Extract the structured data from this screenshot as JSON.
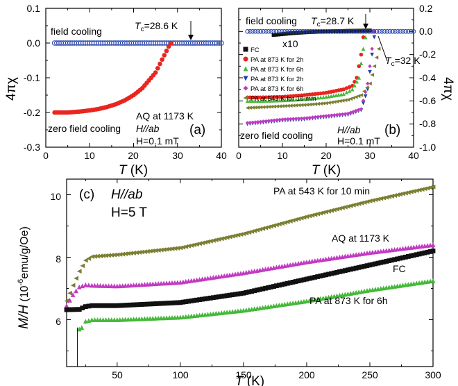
{
  "colors": {
    "axis": "#000000",
    "red": "#e8261f",
    "blue": "#1f3ea8",
    "black": "#111111",
    "green": "#44b83a",
    "magenta": "#c23ac2",
    "olive": "#7a7f32"
  },
  "chart_data": [
    {
      "id": "a",
      "type": "scatter",
      "panel_label": "(a)",
      "xlabel_var": "T",
      "xlabel_unit": " (K)",
      "ylabel": "4πχ",
      "xlim": [
        0,
        40
      ],
      "ylim": [
        -0.3,
        0.1
      ],
      "xticks": [
        "0",
        "10",
        "20",
        "30",
        "40"
      ],
      "yticks": [
        "0.1",
        "0.0",
        "-0.1",
        "-0.2",
        "-0.3"
      ],
      "annotations": {
        "field_cooling": "field cooling",
        "zero_field_cooling": "zero field cooling",
        "tc": "T",
        "tc_sub": "c",
        "tc_val": "=28.6 K",
        "sample": "AQ at 1173 K",
        "field_dir": "H//ab",
        "field_val": "H=0.1 mT"
      },
      "series": [
        {
          "label": "field cooling",
          "color": "#1f3ea8",
          "marker": "open-circle",
          "points": [
            [
              2,
              0.0
            ],
            [
              40,
              0.0
            ]
          ]
        },
        {
          "label": "zero field cooling",
          "color": "#e8261f",
          "marker": "circle",
          "points": [
            [
              2,
              -0.2
            ],
            [
              5,
              -0.2
            ],
            [
              8,
              -0.197
            ],
            [
              10,
              -0.194
            ],
            [
              12,
              -0.19
            ],
            [
              14,
              -0.184
            ],
            [
              16,
              -0.176
            ],
            [
              18,
              -0.165
            ],
            [
              20,
              -0.15
            ],
            [
              22,
              -0.13
            ],
            [
              24,
              -0.1
            ],
            [
              25,
              -0.085
            ],
            [
              26,
              -0.06
            ],
            [
              27,
              -0.035
            ],
            [
              28,
              -0.01
            ],
            [
              28.6,
              0.0
            ]
          ]
        }
      ]
    },
    {
      "id": "b",
      "type": "scatter",
      "panel_label": "(b)",
      "xlabel_var": "T",
      "xlabel_unit": " (K)",
      "ylabel": "4πχ",
      "xlim": [
        0,
        40
      ],
      "ylim": [
        -1.0,
        0.2
      ],
      "xticks": [
        "0",
        "10",
        "20",
        "30",
        "40"
      ],
      "yticks": [
        "0.2",
        "0.0",
        "-0.2",
        "-0.4",
        "-0.6",
        "-0.8",
        "-1.0"
      ],
      "annotations": {
        "field_cooling": "field cooling",
        "zero_field_cooling": "zero field cooling",
        "tc1": "T",
        "tc1_sub": "c",
        "tc1_val": "=28.7 K",
        "tc2": "T",
        "tc2_sub": "c",
        "tc2_val": "=32 K",
        "x10": "x10",
        "field_dir": "H//ab",
        "field_val": "H=0.1 mT"
      },
      "legend": [
        {
          "label": "FC",
          "color": "#111111",
          "marker": "square"
        },
        {
          "label": "PA at 873 K for 2h",
          "color": "#e8261f",
          "marker": "circle"
        },
        {
          "label": "PA at 873 K for 6h",
          "color": "#44b83a",
          "marker": "triangle-up"
        },
        {
          "label": "PA at 873 K for 2h",
          "color": "#1f3ea8",
          "marker": "triangle-down"
        },
        {
          "label": "PA at 873 K for 6h",
          "color": "#c23ac2",
          "marker": "diamond"
        },
        {
          "label": "PA at 543 K for 10 min",
          "color": "#7a7f32",
          "marker": "triangle-left"
        }
      ],
      "series": [
        {
          "label": "FC",
          "color": "#111111",
          "marker": "square",
          "points": [
            [
              8,
              -0.03
            ],
            [
              12,
              -0.015
            ],
            [
              16,
              -0.005
            ],
            [
              20,
              0.0
            ],
            [
              25,
              0.005
            ],
            [
              30,
              0.008
            ]
          ]
        },
        {
          "label": "PA at 873 K for 2h",
          "color": "#e8261f",
          "marker": "circle",
          "points": [
            [
              2,
              -0.57
            ],
            [
              5,
              -0.57
            ],
            [
              10,
              -0.565
            ],
            [
              15,
              -0.55
            ],
            [
              20,
              -0.53
            ],
            [
              24,
              -0.5
            ],
            [
              26,
              -0.47
            ],
            [
              27,
              -0.4
            ],
            [
              28,
              -0.2
            ],
            [
              28.5,
              -0.05
            ]
          ]
        },
        {
          "label": "PA at 873 K for 6h",
          "color": "#44b83a",
          "marker": "triangle-up",
          "points": [
            [
              2,
              -0.6
            ],
            [
              5,
              -0.6
            ],
            [
              10,
              -0.595
            ],
            [
              15,
              -0.585
            ],
            [
              20,
              -0.565
            ],
            [
              24,
              -0.54
            ],
            [
              26,
              -0.5
            ],
            [
              27.5,
              -0.4
            ],
            [
              28.5,
              -0.15
            ],
            [
              29,
              -0.05
            ]
          ]
        },
        {
          "label": "PA at 873 K for 2h",
          "color": "#1f3ea8",
          "marker": "triangle-down",
          "points": [
            [
              2,
              -0.8
            ],
            [
              5,
              -0.79
            ],
            [
              10,
              -0.77
            ],
            [
              15,
              -0.76
            ],
            [
              20,
              -0.74
            ],
            [
              25,
              -0.72
            ],
            [
              28,
              -0.68
            ],
            [
              29.5,
              -0.5
            ],
            [
              30.5,
              -0.2
            ],
            [
              31,
              -0.05
            ]
          ]
        },
        {
          "label": "PA at 873 K for 6h",
          "color": "#c23ac2",
          "marker": "diamond",
          "points": [
            [
              2,
              -0.79
            ],
            [
              5,
              -0.78
            ],
            [
              10,
              -0.76
            ],
            [
              15,
              -0.75
            ],
            [
              20,
              -0.73
            ],
            [
              25,
              -0.71
            ],
            [
              28,
              -0.67
            ],
            [
              29.5,
              -0.45
            ],
            [
              30.5,
              -0.15
            ],
            [
              31,
              0.0
            ]
          ]
        },
        {
          "label": "PA at 543 K for 10 min",
          "color": "#7a7f32",
          "marker": "triangle-left",
          "points": [
            [
              2,
              -0.66
            ],
            [
              5,
              -0.655
            ],
            [
              10,
              -0.645
            ],
            [
              15,
              -0.635
            ],
            [
              20,
              -0.62
            ],
            [
              25,
              -0.59
            ],
            [
              28,
              -0.55
            ],
            [
              30,
              -0.45
            ],
            [
              31,
              -0.3
            ],
            [
              32,
              -0.15
            ]
          ]
        },
        {
          "label": "field cooling",
          "color": "#1f3ea8",
          "marker": "open-circle",
          "points": [
            [
              2,
              0.0
            ],
            [
              40,
              0.0
            ]
          ]
        }
      ]
    },
    {
      "id": "c",
      "type": "scatter",
      "panel_label": "(c)",
      "xlabel_var": "T",
      "xlabel_unit": " (K)",
      "ylabel_var": "M/H",
      "ylabel_unit_pre": " (10",
      "ylabel_unit_exp": "-6",
      "ylabel_unit_post": "emu/g/Oe)",
      "xlim": [
        10,
        300
      ],
      "ylim": [
        4.5,
        10.5
      ],
      "xticks": [
        "50",
        "100",
        "150",
        "200",
        "250",
        "300"
      ],
      "yticks": [
        "6",
        "8",
        "10"
      ],
      "annotations": {
        "field_dir": "H//ab",
        "field_val": "H=5 T"
      },
      "series": [
        {
          "label": "PA at 543 K for 10 min",
          "color": "#7a7f32",
          "marker": "triangle-left",
          "points": [
            [
              10,
              6.6
            ],
            [
              15,
              7.1
            ],
            [
              20,
              7.55
            ],
            [
              25,
              7.9
            ],
            [
              30,
              8.02
            ],
            [
              50,
              8.08
            ],
            [
              100,
              8.3
            ],
            [
              150,
              8.75
            ],
            [
              200,
              9.3
            ],
            [
              250,
              9.8
            ],
            [
              300,
              10.25
            ]
          ]
        },
        {
          "label": "AQ at 1173 K",
          "color": "#c23ac2",
          "marker": "triangle-up",
          "points": [
            [
              10,
              6.45
            ],
            [
              15,
              6.8
            ],
            [
              20,
              7.05
            ],
            [
              25,
              7.12
            ],
            [
              30,
              7.1
            ],
            [
              50,
              7.08
            ],
            [
              100,
              7.2
            ],
            [
              150,
              7.5
            ],
            [
              200,
              7.85
            ],
            [
              250,
              8.15
            ],
            [
              300,
              8.4
            ]
          ]
        },
        {
          "label": "FC",
          "color": "#111111",
          "marker": "square",
          "points": [
            [
              10,
              6.32
            ],
            [
              20,
              6.33
            ],
            [
              25,
              6.42
            ],
            [
              30,
              6.45
            ],
            [
              50,
              6.45
            ],
            [
              100,
              6.55
            ],
            [
              150,
              6.85
            ],
            [
              200,
              7.3
            ],
            [
              250,
              7.75
            ],
            [
              300,
              8.2
            ]
          ]
        },
        {
          "label": "PA at 873 K for 6h",
          "color": "#44b83a",
          "marker": "triangle-up",
          "points": [
            [
              20,
              5.7
            ],
            [
              22,
              5.75
            ],
            [
              25,
              5.95
            ],
            [
              30,
              6.0
            ],
            [
              50,
              6.0
            ],
            [
              100,
              6.08
            ],
            [
              150,
              6.3
            ],
            [
              200,
              6.6
            ],
            [
              250,
              6.95
            ],
            [
              300,
              7.25
            ]
          ]
        }
      ],
      "curve_labels": [
        "PA at 543 K for 10 min",
        "AQ at 1173 K",
        "FC",
        "PA at 873 K for 6h"
      ]
    }
  ]
}
